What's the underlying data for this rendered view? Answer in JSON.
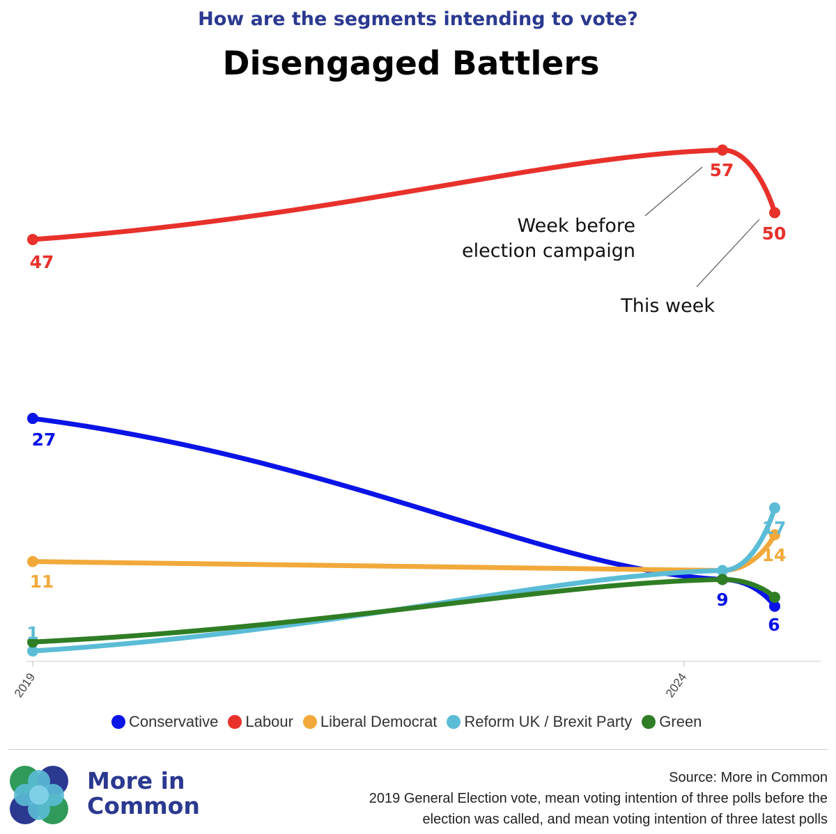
{
  "header": {
    "subtitle": "How are the segments intending to vote?",
    "title": "Disengaged Battlers"
  },
  "chart_data": {
    "type": "line",
    "title": "Disengaged Battlers",
    "subtitle": "How are the segments intending to vote?",
    "x_ticks": [
      "2019",
      "2024"
    ],
    "x_points": [
      "2019 General Election",
      "Week before election campaign",
      "This week"
    ],
    "series": [
      {
        "name": "Conservative",
        "color": "#0a14e6",
        "values": [
          27,
          9,
          6
        ],
        "labels": [
          "27",
          "9",
          "6"
        ]
      },
      {
        "name": "Labour",
        "color": "#e8312b",
        "values": [
          47,
          57,
          50
        ],
        "labels": [
          "47",
          "57",
          "50"
        ]
      },
      {
        "name": "Liberal Democrat",
        "color": "#f2a93b",
        "values": [
          11,
          10,
          14
        ],
        "labels": [
          "11",
          "",
          "14"
        ]
      },
      {
        "name": "Reform UK / Brexit Party",
        "color": "#5bbcd6",
        "values": [
          1,
          10,
          17
        ],
        "labels": [
          "1",
          "",
          "17"
        ]
      },
      {
        "name": "Green",
        "color": "#2f7d24",
        "values": [
          2,
          9,
          7
        ],
        "labels": [
          "",
          "",
          ""
        ]
      }
    ],
    "annotations": [
      {
        "text_lines": [
          "Week before",
          "election campaign"
        ]
      },
      {
        "text_lines": [
          "This week"
        ]
      }
    ],
    "grid": false
  },
  "legend": [
    {
      "label": "Conservative",
      "color": "#0a14e6"
    },
    {
      "label": "Labour",
      "color": "#e8312b"
    },
    {
      "label": "Liberal Democrat",
      "color": "#f2a93b"
    },
    {
      "label": "Reform UK / Brexit Party",
      "color": "#5bbcd6"
    },
    {
      "label": "Green",
      "color": "#2f7d24"
    }
  ],
  "footer": {
    "brand_line1": "More in",
    "brand_line2": "Common",
    "source_line1": "Source: More in Common",
    "source_line2": "2019 General Election vote, mean voting intention of three polls before the",
    "source_line3": "election was called, and mean voting intention of three latest polls"
  }
}
